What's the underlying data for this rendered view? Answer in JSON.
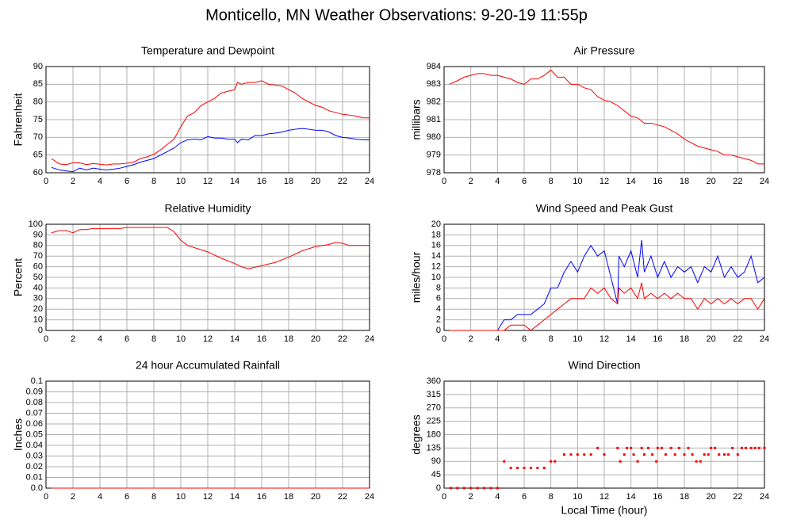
{
  "title": "Monticello, MN Weather Observations: 9-20-19 11:55p",
  "chart_data": [
    {
      "type": "line",
      "title": "Temperature and Dewpoint",
      "ylabel": "Fahrenheit",
      "x": [
        0.4,
        1,
        1.5,
        2,
        2.5,
        3,
        3.5,
        4,
        4.5,
        5,
        5.5,
        6,
        6.5,
        7,
        7.5,
        8,
        8.5,
        9,
        9.5,
        10,
        10.5,
        11,
        11.5,
        12,
        12.5,
        13,
        13.5,
        14,
        14.2,
        14.5,
        15,
        15.5,
        16,
        16.5,
        17,
        17.5,
        18,
        18.5,
        19,
        19.5,
        20,
        20.5,
        21,
        21.5,
        22,
        22.5,
        23,
        23.5,
        24
      ],
      "series": [
        {
          "color": "#ff0000",
          "values": [
            64,
            62.5,
            62.3,
            62.8,
            62.8,
            62.3,
            62.6,
            62.4,
            62.2,
            62.5,
            62.5,
            62.7,
            63,
            64,
            64.5,
            65.2,
            66.5,
            68,
            69.5,
            73,
            76,
            77,
            79,
            80,
            81,
            82.5,
            83,
            83.5,
            85.5,
            85,
            85.5,
            85.5,
            86,
            85,
            84.8,
            84.5,
            83.5,
            82.5,
            81,
            80,
            79,
            78.5,
            77.5,
            77,
            76.5,
            76.3,
            76,
            75.5,
            75.5
          ]
        },
        {
          "color": "#0000ff",
          "values": [
            61.5,
            60.8,
            60.5,
            60.3,
            61.3,
            60.8,
            61.3,
            61,
            60.8,
            61,
            61.3,
            61.8,
            62.3,
            63,
            63.5,
            64,
            65,
            66,
            67,
            68.5,
            69.3,
            69.5,
            69.3,
            70.2,
            69.8,
            69.8,
            69.5,
            69.5,
            68.5,
            69.5,
            69.3,
            70.5,
            70.5,
            71,
            71.2,
            71.5,
            72,
            72.3,
            72.5,
            72.3,
            72,
            72,
            71.5,
            70.5,
            70,
            69.8,
            69.5,
            69.3,
            69.3
          ]
        }
      ],
      "xlim": [
        0,
        24
      ],
      "xticks": [
        0,
        2,
        4,
        6,
        8,
        10,
        12,
        14,
        16,
        18,
        20,
        22,
        24
      ],
      "ylim": [
        60,
        90
      ],
      "yticks": [
        60,
        65,
        70,
        75,
        80,
        85,
        90
      ],
      "grid": true
    },
    {
      "type": "line",
      "title": "Air Pressure",
      "ylabel": "millibars",
      "x": [
        0.4,
        1,
        1.5,
        2,
        2.5,
        3,
        3.5,
        4,
        4.5,
        5,
        5.5,
        6,
        6.5,
        7,
        7.5,
        8,
        8.5,
        9,
        9.5,
        10,
        10.5,
        11,
        11.5,
        12,
        12.5,
        13,
        13.5,
        14,
        14.5,
        15,
        15.5,
        16,
        16.5,
        17,
        17.5,
        18,
        18.5,
        19,
        19.5,
        20,
        20.5,
        21,
        21.5,
        22,
        22.5,
        23,
        23.5,
        24
      ],
      "series": [
        {
          "color": "#ff0000",
          "values": [
            983,
            983.2,
            983.4,
            983.5,
            983.6,
            983.6,
            983.5,
            983.5,
            983.4,
            983.3,
            983.1,
            983,
            983.3,
            983.3,
            983.5,
            983.8,
            983.4,
            983.4,
            983,
            983,
            982.8,
            982.7,
            982.3,
            982.1,
            982,
            981.8,
            981.5,
            981.2,
            981.1,
            980.8,
            980.8,
            980.7,
            980.6,
            980.4,
            980.2,
            979.9,
            979.7,
            979.5,
            979.4,
            979.3,
            979.2,
            979,
            979,
            978.9,
            978.8,
            978.7,
            978.5,
            978.5
          ]
        }
      ],
      "xlim": [
        0,
        24
      ],
      "xticks": [
        0,
        2,
        4,
        6,
        8,
        10,
        12,
        14,
        16,
        18,
        20,
        22,
        24
      ],
      "ylim": [
        978,
        984
      ],
      "yticks": [
        978,
        979,
        980,
        981,
        982,
        983,
        984
      ],
      "grid": true
    },
    {
      "type": "line",
      "title": "Relative Humidity",
      "ylabel": "Percent",
      "x": [
        0.4,
        1,
        1.5,
        2,
        2.5,
        3,
        3.5,
        4,
        5,
        5.5,
        6,
        7,
        8,
        9,
        9.5,
        10,
        10.5,
        11,
        12,
        13,
        14,
        14.5,
        15,
        16,
        17,
        18,
        19,
        20,
        21,
        21.5,
        22,
        22.5,
        23,
        24
      ],
      "series": [
        {
          "color": "#ff0000",
          "values": [
            92,
            94,
            94,
            92,
            95,
            95,
            96,
            96,
            96,
            96,
            97,
            97,
            97,
            97,
            93,
            85,
            80,
            78,
            74,
            68,
            63,
            60,
            58,
            61,
            64,
            69,
            75,
            79,
            81,
            83,
            82,
            80,
            80,
            80
          ]
        }
      ],
      "xlim": [
        0,
        24
      ],
      "xticks": [
        0,
        2,
        4,
        6,
        8,
        10,
        12,
        14,
        16,
        18,
        20,
        22,
        24
      ],
      "ylim": [
        0,
        100
      ],
      "yticks": [
        0,
        10,
        20,
        30,
        40,
        50,
        60,
        70,
        80,
        90,
        100
      ],
      "grid": true
    },
    {
      "type": "line",
      "title": "Wind Speed and Peak Gust",
      "ylabel": "miles/hour",
      "x": [
        0.4,
        4,
        4.5,
        5,
        5.5,
        6,
        6.5,
        7,
        7.5,
        8,
        8.5,
        9,
        9.5,
        10,
        10.5,
        11,
        11.5,
        12,
        12.5,
        13,
        13.1,
        13.5,
        14,
        14.5,
        14.8,
        15,
        15.5,
        16,
        16.5,
        17,
        17.5,
        18,
        18.5,
        19,
        19.5,
        20,
        20.5,
        21,
        21.5,
        22,
        22.5,
        23,
        23.5,
        24
      ],
      "series": [
        {
          "color": "#0000ff",
          "values": [
            0,
            0,
            2,
            2,
            3,
            3,
            3,
            4,
            5,
            8,
            8,
            11,
            13,
            11,
            14,
            16,
            14,
            15,
            10,
            5,
            14,
            12,
            15,
            10,
            17,
            11,
            14,
            10,
            13,
            10,
            12,
            11,
            12,
            9,
            12,
            11,
            14,
            10,
            12,
            10,
            11,
            14,
            9,
            10
          ]
        },
        {
          "color": "#ff0000",
          "values": [
            0,
            0,
            0,
            1,
            1,
            1,
            0,
            1,
            2,
            3,
            4,
            5,
            6,
            6,
            6,
            8,
            7,
            8,
            6,
            5,
            8,
            7,
            8,
            6,
            9,
            6,
            7,
            6,
            7,
            6,
            7,
            6,
            6,
            4,
            6,
            5,
            6,
            5,
            6,
            5,
            6,
            6,
            4,
            6
          ]
        }
      ],
      "xlim": [
        0,
        24
      ],
      "xticks": [
        0,
        2,
        4,
        6,
        8,
        10,
        12,
        14,
        16,
        18,
        20,
        22,
        24
      ],
      "ylim": [
        0,
        20
      ],
      "yticks": [
        0,
        2,
        4,
        6,
        8,
        10,
        12,
        14,
        16,
        18,
        20
      ],
      "grid": true
    },
    {
      "type": "line",
      "title": "24 hour Accumulated Rainfall",
      "ylabel": "Inches",
      "x": [
        0.4,
        24
      ],
      "series": [
        {
          "color": "#ff0000",
          "values": [
            0,
            0
          ]
        }
      ],
      "xlim": [
        0,
        24
      ],
      "xticks": [
        0,
        2,
        4,
        6,
        8,
        10,
        12,
        14,
        16,
        18,
        20,
        22,
        24
      ],
      "ylim": [
        0,
        0.1
      ],
      "yticks": [
        {
          "value": 0,
          "label": "0.0"
        },
        0.01,
        0.02,
        0.03,
        0.04,
        0.05,
        0.06,
        0.07,
        0.08,
        0.09,
        0.1
      ],
      "grid": true
    },
    {
      "type": "scatter",
      "title": "Wind Direction",
      "ylabel": "degrees",
      "xlabel": "Local Time (hour)",
      "x": [
        0.5,
        1,
        1.5,
        2,
        2.5,
        3,
        3.5,
        4,
        4.5,
        5,
        5.5,
        6,
        6.5,
        7,
        7.5,
        8,
        8.3,
        9,
        9.5,
        10,
        10.5,
        11,
        11.5,
        12,
        13,
        13.2,
        13.5,
        13.7,
        14,
        14.2,
        14.5,
        14.8,
        15,
        15.3,
        15.6,
        15.9,
        16,
        16.3,
        16.6,
        17,
        17.3,
        17.6,
        18,
        18.3,
        18.6,
        18.9,
        19.2,
        19.5,
        19.8,
        20,
        20.3,
        20.6,
        21,
        21.3,
        21.6,
        22,
        22.3,
        22.6,
        23,
        23.3,
        23.6,
        24
      ],
      "values": [
        0,
        0,
        0,
        0,
        0,
        0,
        0,
        0,
        90,
        68,
        68,
        68,
        68,
        68,
        68,
        90,
        90,
        113,
        113,
        113,
        113,
        113,
        135,
        113,
        135,
        90,
        113,
        135,
        135,
        113,
        90,
        135,
        113,
        135,
        113,
        90,
        135,
        135,
        113,
        135,
        113,
        135,
        113,
        135,
        113,
        90,
        90,
        113,
        113,
        135,
        135,
        113,
        113,
        113,
        135,
        113,
        135,
        135,
        135,
        135,
        135,
        135
      ],
      "color": "#ff0000",
      "xlim": [
        0,
        24
      ],
      "xticks": [
        0,
        2,
        4,
        6,
        8,
        10,
        12,
        14,
        16,
        18,
        20,
        22,
        24
      ],
      "ylim": [
        0,
        360
      ],
      "yticks": [
        0,
        45,
        90,
        135,
        180,
        225,
        270,
        315,
        360
      ],
      "grid": true
    }
  ]
}
